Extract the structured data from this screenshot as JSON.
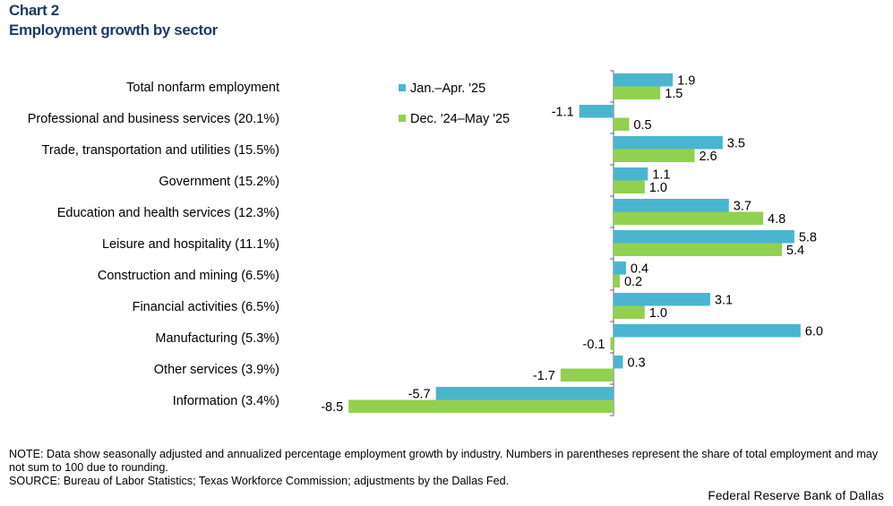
{
  "header": {
    "kicker": "Chart 2",
    "title": "Employment growth by sector"
  },
  "chart_data": {
    "type": "bar",
    "orientation": "horizontal",
    "categories": [
      "Total nonfarm employment",
      "Professional and business services (20.1%)",
      "Trade, transportation and utilities (15.5%)",
      "Government  (15.2%)",
      "Education and health services (12.3%)",
      "Leisure and hospitality (11.1%)",
      "Construction and mining (6.5%)",
      "Financial activities  (6.5%)",
      "Manufacturing  (5.3%)",
      "Other services  (3.9%)",
      "Information  (3.4%)"
    ],
    "series": [
      {
        "name": "Jan.–Apr. '25",
        "color": "#4bb5cf",
        "values": [
          1.9,
          -1.1,
          3.5,
          1.1,
          3.7,
          5.8,
          0.4,
          3.1,
          6.0,
          0.3,
          -5.7
        ],
        "labels": [
          "1.9",
          "-1.1",
          "3.5",
          "1.1",
          "3.7",
          "5.8",
          "0.4",
          "3.1",
          "6.0",
          "0.3",
          "-5.7"
        ]
      },
      {
        "name": "Dec. '24–May '25",
        "color": "#92d050",
        "values": [
          1.5,
          0.5,
          2.6,
          1.0,
          4.8,
          5.4,
          0.2,
          1.0,
          -0.1,
          -1.7,
          -8.5
        ],
        "labels": [
          "1.5",
          "0.5",
          "2.6",
          "1.0",
          "4.8",
          "5.4",
          "0.2",
          "1.0",
          "-0.1",
          "-1.7",
          "-8.5"
        ]
      }
    ],
    "xlim": [
      -8.5,
      6.0
    ],
    "grid": false,
    "legend": "top-center"
  },
  "notes": {
    "note": "NOTE: Data show seasonally adjusted and annualized percentage employment growth by industry. Numbers in parentheses represent the share of total employment and may not sum to 100 due to rounding.",
    "source": "SOURCE: Bureau of Labor Statistics; Texas Workforce Commission; adjustments by the Dallas Fed."
  },
  "brand": "Federal Reserve Bank of Dallas"
}
